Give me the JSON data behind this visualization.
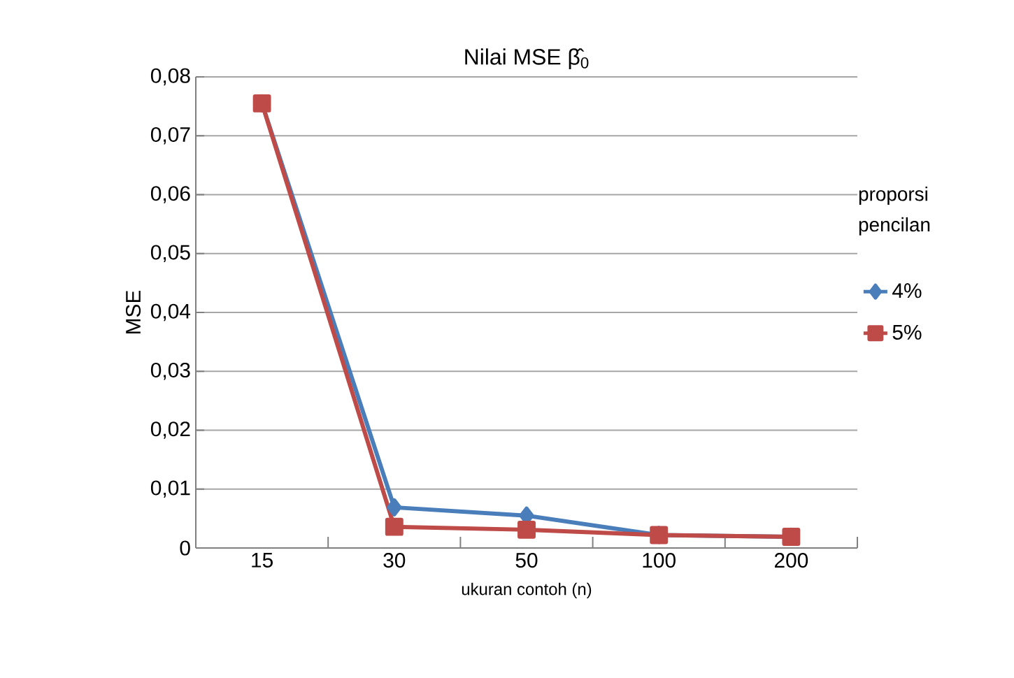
{
  "chart_data": {
    "type": "line",
    "title": "Nilai MSE β̂$_{0}$",
    "xlabel": "ukuran contoh (n)",
    "ylabel": "MSE",
    "legend_title": "proporsi pencilan",
    "categories": [
      "15",
      "30",
      "50",
      "100",
      "200"
    ],
    "series": [
      {
        "name": "4%",
        "color": "#4a7ebb",
        "marker": "diamond",
        "values": [
          0.0755,
          0.0069,
          0.0055,
          0.0022,
          0.0019
        ]
      },
      {
        "name": "5%",
        "color": "#be4b48",
        "marker": "square",
        "values": [
          0.0755,
          0.0036,
          0.0031,
          0.0022,
          0.0019
        ]
      }
    ],
    "ylim": [
      0,
      0.08
    ],
    "yticks": [
      0,
      {
        "value": 0.01,
        "label": "0,01"
      },
      {
        "value": 0.02,
        "label": "0,02"
      },
      {
        "value": 0.03,
        "label": "0,03"
      },
      {
        "value": 0.04,
        "label": "0,04"
      },
      {
        "value": 0.05,
        "label": "0,05"
      },
      {
        "value": 0.06,
        "label": "0,06"
      },
      {
        "value": 0.07,
        "label": "0,07"
      },
      {
        "value": 0.08,
        "label": "0,08"
      }
    ],
    "grid": "y",
    "legend": "right",
    "line_style": "solid"
  }
}
